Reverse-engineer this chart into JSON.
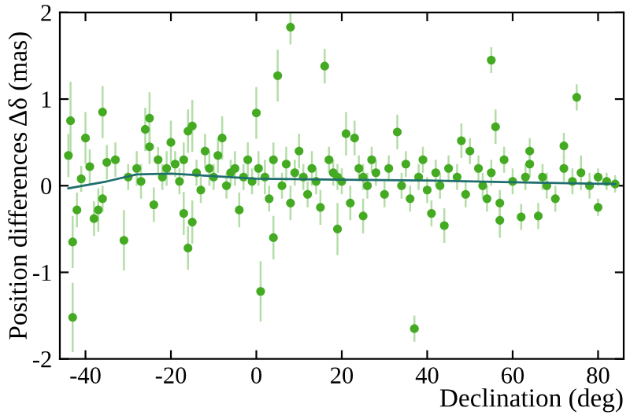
{
  "chart_data": {
    "type": "scatter",
    "xlabel": "Declination (deg)",
    "ylabel": "Position differences Δδ (mas)",
    "xlim": [
      -46,
      86
    ],
    "ylim": [
      -2,
      2
    ],
    "xticks": [
      -40,
      -20,
      0,
      20,
      40,
      60,
      80
    ],
    "yticks": [
      -2,
      -1,
      0,
      1,
      2
    ],
    "grid": false,
    "series": [
      {
        "color": "#44aa22",
        "marker": "circle",
        "x": [
          -44,
          -43.5,
          -43,
          -43,
          -42,
          -41,
          -40,
          -39,
          -38,
          -37,
          -36,
          -36,
          -35,
          -33,
          -31,
          -30,
          -28,
          -27,
          -26,
          -25,
          -25,
          -24,
          -23,
          -22,
          -21,
          -20,
          -19,
          -18,
          -17,
          -17,
          -16,
          -16,
          -15,
          -15,
          -14,
          -13,
          -12,
          -11,
          -10,
          -9,
          -8,
          -7,
          -6,
          -5,
          -4,
          -3,
          -2,
          -1,
          0,
          0.5,
          1,
          2,
          3,
          4,
          4,
          5,
          6,
          7,
          8,
          8,
          9,
          10,
          11,
          12,
          13,
          14,
          15,
          16,
          17,
          18,
          19,
          19,
          20,
          21,
          22,
          23,
          24,
          25,
          25,
          26,
          27,
          28,
          30,
          31,
          33,
          34,
          35,
          36,
          37,
          38,
          39,
          40,
          41,
          42,
          43,
          44,
          45,
          47,
          48,
          49,
          50,
          52,
          53,
          54,
          55,
          55,
          56,
          57,
          57,
          58,
          60,
          62,
          63,
          64,
          64,
          66,
          67,
          68,
          70,
          72,
          72,
          74,
          75,
          76,
          78,
          80,
          80,
          82,
          84
        ],
        "values": [
          0.35,
          0.75,
          -0.65,
          -1.52,
          -0.28,
          0.08,
          0.55,
          0.22,
          -0.38,
          -0.28,
          0.85,
          -0.15,
          0.27,
          0.3,
          -0.63,
          0.1,
          0.2,
          0.05,
          0.65,
          0.78,
          0.45,
          -0.22,
          0.3,
          0.1,
          0.2,
          0.5,
          0.25,
          0.05,
          -0.32,
          0.3,
          0.63,
          -0.72,
          0.69,
          -0.42,
          0.15,
          -0.05,
          0.4,
          0.2,
          0.1,
          0.35,
          0.55,
          0.0,
          0.15,
          0.2,
          -0.28,
          0.1,
          0.3,
          0.05,
          0.84,
          0.2,
          -1.22,
          0.1,
          -0.15,
          -0.6,
          0.3,
          1.27,
          0.0,
          0.25,
          1.83,
          -0.2,
          0.15,
          0.4,
          0.1,
          -0.1,
          0.2,
          0.05,
          -0.25,
          1.38,
          0.3,
          0.15,
          -0.5,
          0.1,
          0.05,
          0.6,
          -0.2,
          0.55,
          0.2,
          -0.35,
          0.1,
          0.0,
          0.3,
          0.15,
          -0.1,
          0.2,
          0.62,
          0.0,
          0.25,
          -0.15,
          -1.65,
          0.1,
          0.3,
          -0.05,
          -0.32,
          0.15,
          0.0,
          -0.46,
          0.2,
          0.1,
          0.52,
          -0.1,
          0.4,
          0.2,
          0.0,
          -0.15,
          1.45,
          0.15,
          0.68,
          -0.2,
          -0.4,
          0.3,
          0.05,
          -0.36,
          0.1,
          0.25,
          0.4,
          -0.35,
          0.1,
          0.0,
          -0.15,
          0.2,
          0.46,
          0.05,
          1.02,
          0.15,
          0.0,
          0.1,
          -0.25,
          0.05,
          0.02
        ],
        "errors": [
          0.25,
          0.45,
          0.3,
          0.4,
          0.2,
          0.15,
          0.3,
          0.2,
          0.2,
          0.25,
          0.3,
          0.15,
          0.2,
          0.2,
          0.35,
          0.15,
          0.2,
          0.2,
          0.25,
          0.3,
          0.2,
          0.2,
          0.15,
          0.15,
          0.2,
          0.25,
          0.15,
          0.15,
          0.25,
          0.2,
          0.25,
          0.25,
          0.3,
          0.25,
          0.15,
          0.15,
          0.2,
          0.2,
          0.15,
          0.2,
          0.25,
          0.15,
          0.15,
          0.2,
          0.2,
          0.15,
          0.2,
          0.15,
          0.3,
          0.2,
          0.35,
          0.2,
          0.15,
          0.25,
          0.2,
          0.3,
          0.15,
          0.2,
          0.2,
          0.2,
          0.15,
          0.2,
          0.15,
          0.15,
          0.2,
          0.15,
          0.2,
          0.2,
          0.15,
          0.15,
          0.3,
          0.15,
          0.15,
          0.25,
          0.2,
          0.2,
          0.15,
          0.2,
          0.15,
          0.15,
          0.15,
          0.15,
          0.15,
          0.15,
          0.2,
          0.15,
          0.15,
          0.15,
          0.15,
          0.15,
          0.15,
          0.15,
          0.15,
          0.15,
          0.15,
          0.2,
          0.15,
          0.15,
          0.2,
          0.15,
          0.15,
          0.15,
          0.15,
          0.15,
          0.15,
          0.15,
          0.2,
          0.15,
          0.2,
          0.15,
          0.15,
          0.15,
          0.15,
          0.15,
          0.15,
          0.15,
          0.15,
          0.15,
          0.15,
          0.15,
          0.15,
          0.15,
          0.15,
          0.2,
          0.15,
          0.1,
          0.1,
          0.1,
          0.1
        ]
      },
      {
        "type": "line",
        "color": "#1f6e6e",
        "x": [
          -44,
          -35,
          -28,
          -20,
          -10,
          0,
          20,
          40,
          60,
          84
        ],
        "values": [
          -0.03,
          0.05,
          0.13,
          0.14,
          0.11,
          0.08,
          0.07,
          0.06,
          0.04,
          0.02
        ]
      }
    ]
  }
}
